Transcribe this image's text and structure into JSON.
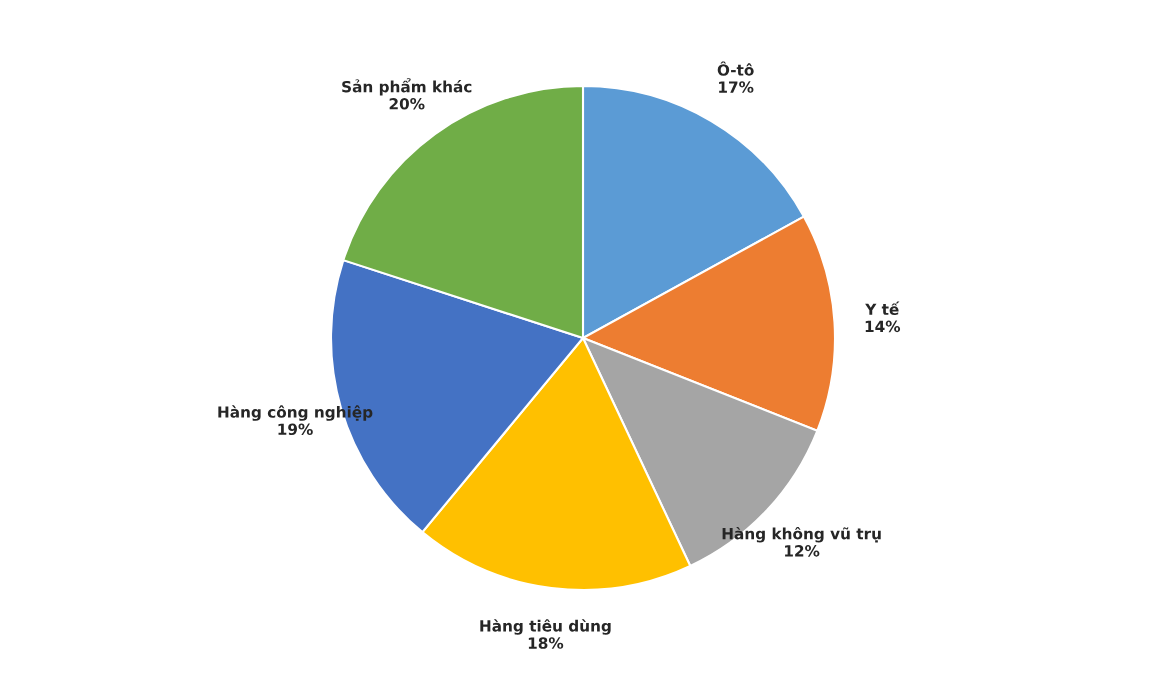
{
  "chart_data": {
    "type": "pie",
    "categories": [
      "Ô-tô",
      "Y tế",
      "Hàng không vũ trụ",
      "Hàng tiêu dùng",
      "Hàng công nghiệp",
      "Sản phẩm khác"
    ],
    "values": [
      17,
      14,
      12,
      18,
      19,
      20
    ],
    "value_labels": [
      "17%",
      "14%",
      "12%",
      "18%",
      "19%",
      "20%"
    ],
    "colors": [
      "#5b9bd5",
      "#ed7d31",
      "#a5a5a5",
      "#ffc000",
      "#4472c4",
      "#70ad47"
    ],
    "legend": false
  }
}
